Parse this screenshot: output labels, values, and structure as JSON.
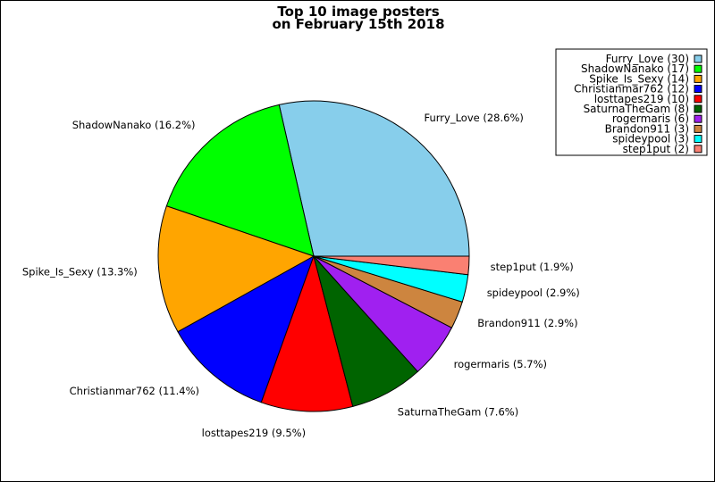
{
  "chart_data": {
    "type": "pie",
    "title": [
      "Top 10 image posters",
      "on February 15th 2018"
    ],
    "start_angle_deg": 0,
    "direction": "counterclockwise",
    "legend_position": "top-right",
    "slices": [
      {
        "name": "Furry_Love",
        "value": 30,
        "percent_label": "Furry_Love (28.6%)",
        "legend_label": "Furry_Love (30)",
        "color": "#87ceeb"
      },
      {
        "name": "ShadowNanako",
        "value": 17,
        "percent_label": "ShadowNanako (16.2%)",
        "legend_label": "ShadowNanako (17)",
        "color": "#00ff00"
      },
      {
        "name": "Spike_Is_Sexy",
        "value": 14,
        "percent_label": "Spike_Is_Sexy (13.3%)",
        "legend_label": "Spike_Is_Sexy (14)",
        "color": "#ffa500"
      },
      {
        "name": "Christianmar762",
        "value": 12,
        "percent_label": "Christianmar762 (11.4%)",
        "legend_label": "Christianmar762 (12)",
        "color": "#0000ff"
      },
      {
        "name": "losttapes219",
        "value": 10,
        "percent_label": "losttapes219 (9.5%)",
        "legend_label": "losttapes219 (10)",
        "color": "#ff0000"
      },
      {
        "name": "SaturnaTheGam",
        "value": 8,
        "percent_label": "SaturnaTheGam (7.6%)",
        "legend_label": "SaturnaTheGam (8)",
        "color": "#006400"
      },
      {
        "name": "rogermaris",
        "value": 6,
        "percent_label": "rogermaris (5.7%)",
        "legend_label": "rogermaris (6)",
        "color": "#a020f0"
      },
      {
        "name": "Brandon911",
        "value": 3,
        "percent_label": "Brandon911 (2.9%)",
        "legend_label": "Brandon911 (3)",
        "color": "#cd853f"
      },
      {
        "name": "spideypool",
        "value": 3,
        "percent_label": "spideypool (2.9%)",
        "legend_label": "spideypool (3)",
        "color": "#00ffff"
      },
      {
        "name": "step1put",
        "value": 2,
        "percent_label": "step1put (1.9%)",
        "legend_label": "step1put (2)",
        "color": "#fa8072"
      }
    ]
  }
}
